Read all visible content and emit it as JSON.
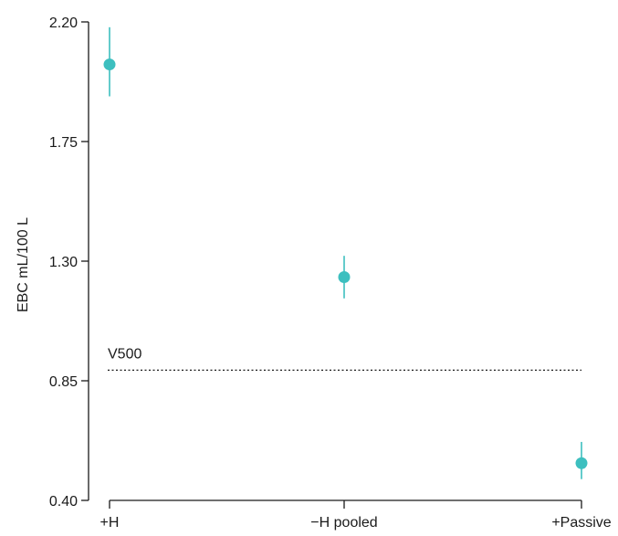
{
  "chart_data": {
    "type": "scatter",
    "categories": [
      "+H",
      "−H pooled",
      "+Passive"
    ],
    "series": [
      {
        "values": [
          2.04,
          1.24,
          0.54
        ],
        "error_low": [
          1.92,
          1.16,
          0.48
        ],
        "error_high": [
          2.18,
          1.32,
          0.62
        ]
      }
    ],
    "ylabel": "EBC mL/100 L",
    "xlabel": "",
    "title": "",
    "ylim": [
      0.4,
      2.2
    ],
    "yticks": [
      "0.40",
      "0.85",
      "1.30",
      "1.75",
      "2.20"
    ],
    "reference_line": {
      "label": "V500",
      "value": 0.89,
      "style": "dotted"
    },
    "grid": false,
    "marker_color": "#3dbfbf"
  }
}
